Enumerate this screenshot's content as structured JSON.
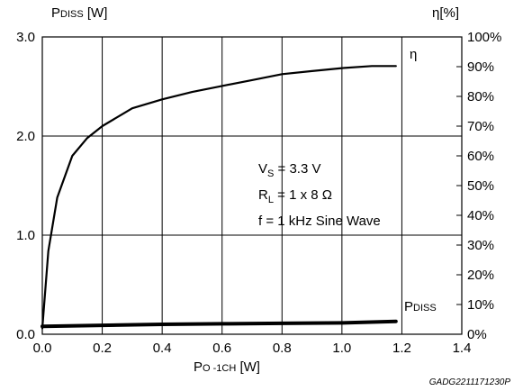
{
  "chart_data": {
    "type": "line",
    "xlabel": "PO -1CH [W]",
    "ylabel_left": "PDISS [W]",
    "ylabel_right": "η[%]",
    "xlim": [
      0.0,
      1.4
    ],
    "ylim_left": [
      0.0,
      3.0
    ],
    "ylim_right": [
      0,
      100
    ],
    "x_ticks": [
      "0.0",
      "0.2",
      "0.4",
      "0.6",
      "0.8",
      "1.0",
      "1.2",
      "1.4"
    ],
    "y_left_ticks": [
      "0.0",
      "1.0",
      "2.0",
      "3.0"
    ],
    "y_right_ticks": [
      "0%",
      "10%",
      "20%",
      "30%",
      "40%",
      "50%",
      "60%",
      "70%",
      "80%",
      "90%",
      "100%"
    ],
    "grid": true,
    "annotations": [
      "VS = 3.3 V",
      "RL = 1 x 8 Ω",
      "f = 1 kHz Sine Wave"
    ],
    "series": [
      {
        "name": "η",
        "axis": "right",
        "x": [
          0.0,
          0.02,
          0.05,
          0.1,
          0.15,
          0.2,
          0.3,
          0.4,
          0.5,
          0.6,
          0.7,
          0.8,
          0.9,
          1.0,
          1.1,
          1.18
        ],
        "y": [
          2,
          28,
          46,
          60,
          66,
          70,
          76,
          79,
          81.5,
          83.5,
          85.5,
          87.5,
          88.5,
          89.5,
          90.2,
          90.2
        ]
      },
      {
        "name": "PDISS",
        "axis": "left",
        "x": [
          0.0,
          0.2,
          0.4,
          0.6,
          0.8,
          1.0,
          1.18
        ],
        "y": [
          0.08,
          0.09,
          0.1,
          0.105,
          0.11,
          0.115,
          0.13
        ]
      }
    ]
  },
  "labels": {
    "ylabel_left_main": "P",
    "ylabel_left_sub": "DISS",
    "ylabel_left_unit": " [W]",
    "ylabel_right": "η[%]",
    "xlabel_main": "P",
    "xlabel_sub": "O -1CH",
    "xlabel_unit": " [W]",
    "eta": "η",
    "pdiss_main": "P",
    "pdiss_sub": "DISS",
    "param1_main": "V",
    "param1_sub": "S",
    "param1_rest": " = 3.3 V",
    "param2_main": "R",
    "param2_sub": "L",
    "param2_rest": " = 1 x 8 Ω",
    "param3": "f = 1 kHz Sine Wave",
    "doc_id": "GADG2211171230P"
  }
}
